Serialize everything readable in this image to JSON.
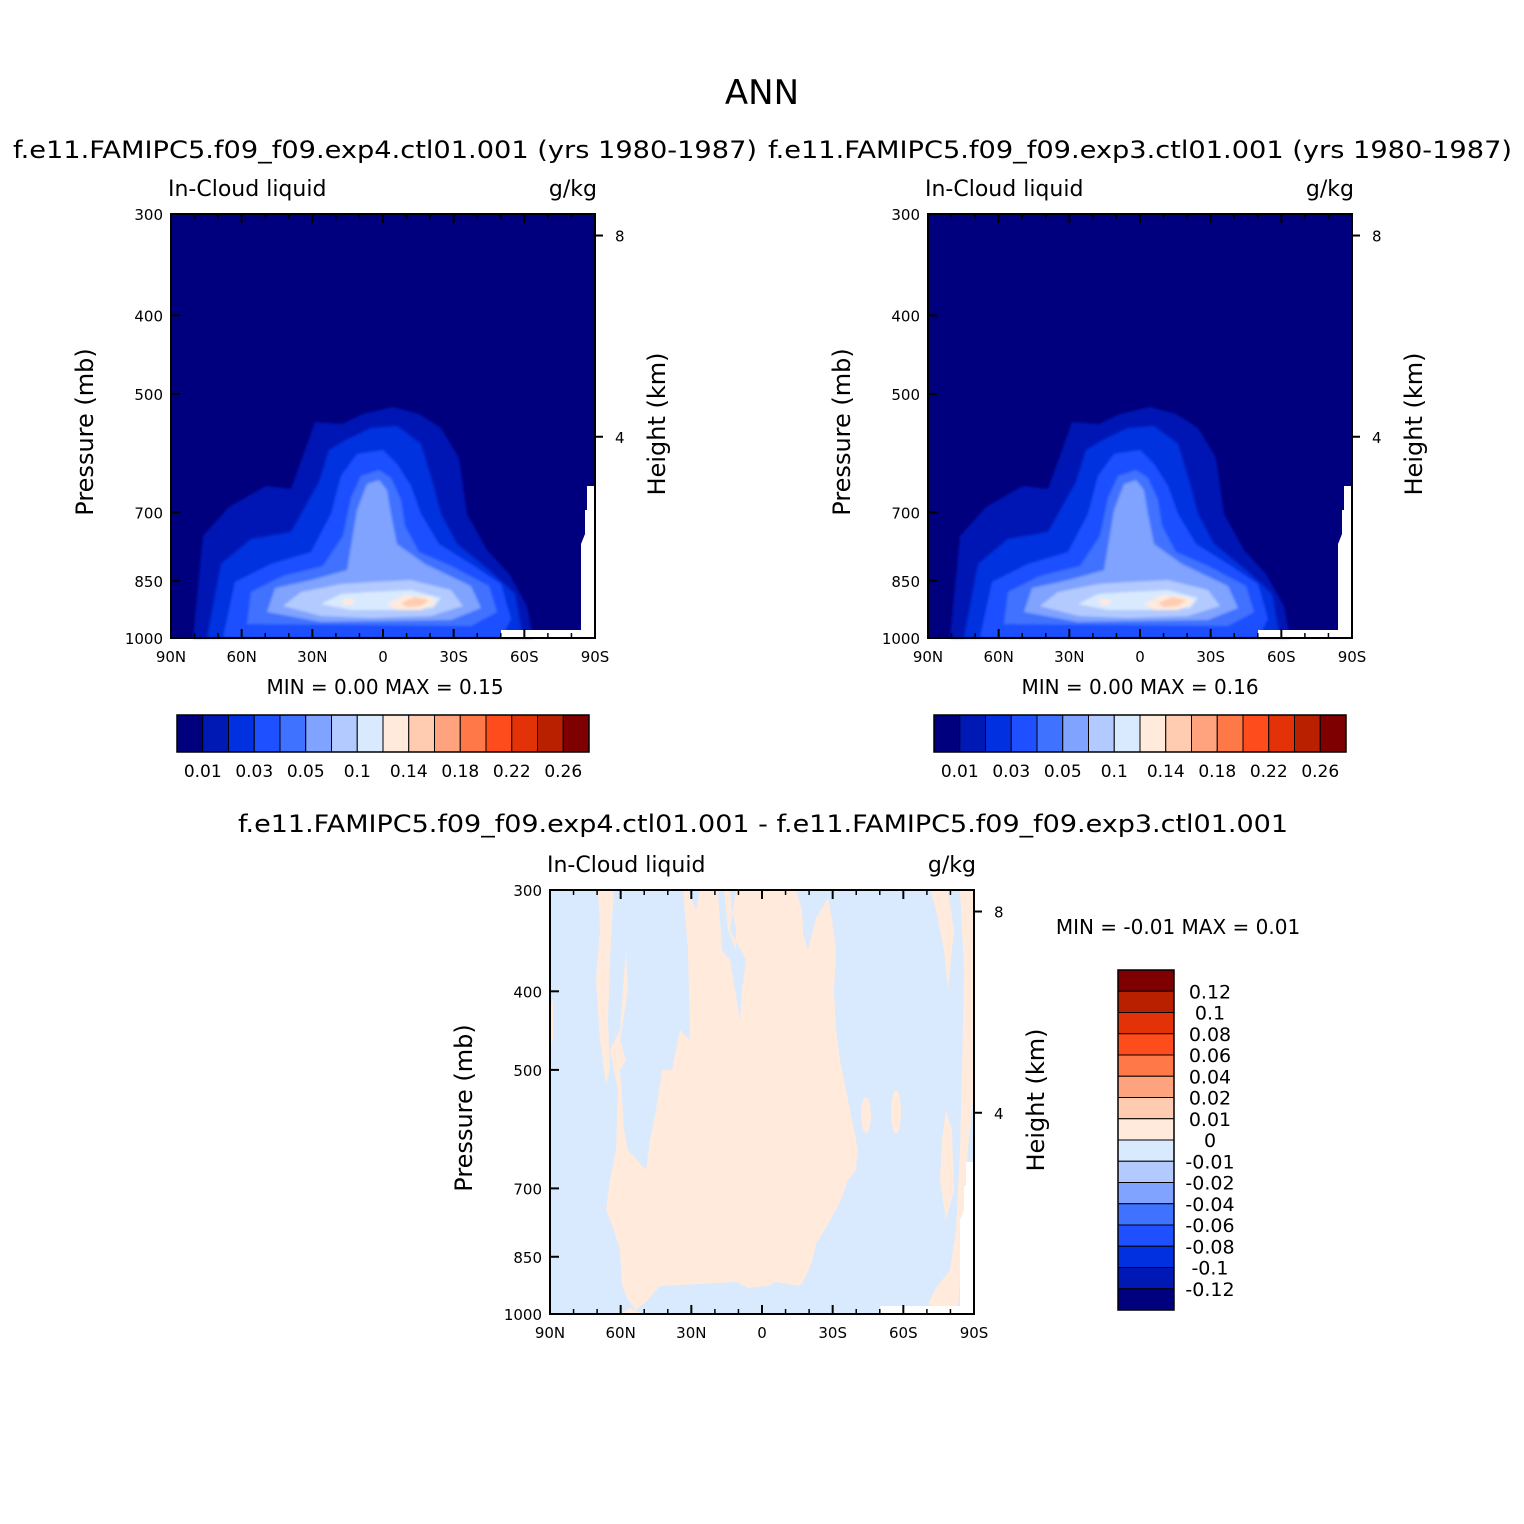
{
  "figure_title": "ANN",
  "chart_data": [
    {
      "type": "heatmap",
      "panel": "left",
      "case_title": "f.e11.FAMIPC5.f09_f09.exp4.ctl01.001 (yrs 1980-1987)",
      "variable": "In-Cloud liquid",
      "units": "g/kg",
      "ylabel": "Pressure (mb)",
      "ylabel_right": "Height (km)",
      "x_ticks": [
        "90N",
        "60N",
        "30N",
        "0",
        "30S",
        "60S",
        "90S"
      ],
      "y_ticks": [
        "300",
        "400",
        "500",
        "700",
        "850",
        "1000"
      ],
      "y2_ticks": [
        "8",
        "4"
      ],
      "ylim": [
        1000,
        300
      ],
      "y_scale": "log",
      "stats": {
        "min_label": "MIN =",
        "min": "0.00",
        "max_label": "MAX =",
        "max": "0.15"
      },
      "colorbar_labels": [
        "0.01",
        "0.03",
        "0.05",
        "0.1",
        "0.14",
        "0.18",
        "0.22",
        "0.26"
      ],
      "max_location": {
        "lat": "10S",
        "pressure": 880
      }
    },
    {
      "type": "heatmap",
      "panel": "right",
      "case_title": "f.e11.FAMIPC5.f09_f09.exp3.ctl01.001 (yrs 1980-1987)",
      "variable": "In-Cloud liquid",
      "units": "g/kg",
      "ylabel": "Pressure (mb)",
      "ylabel_right": "Height (km)",
      "x_ticks": [
        "90N",
        "60N",
        "30N",
        "0",
        "30S",
        "60S",
        "90S"
      ],
      "y_ticks": [
        "300",
        "400",
        "500",
        "700",
        "850",
        "1000"
      ],
      "y2_ticks": [
        "8",
        "4"
      ],
      "ylim": [
        1000,
        300
      ],
      "y_scale": "log",
      "stats": {
        "min_label": "MIN =",
        "min": "0.00",
        "max_label": "MAX =",
        "max": "0.16"
      },
      "colorbar_labels": [
        "0.01",
        "0.03",
        "0.05",
        "0.1",
        "0.14",
        "0.18",
        "0.22",
        "0.26"
      ],
      "max_location": {
        "lat": "10S",
        "pressure": 880
      }
    },
    {
      "type": "heatmap",
      "panel": "difference",
      "case_title": "f.e11.FAMIPC5.f09_f09.exp4.ctl01.001 - f.e11.FAMIPC5.f09_f09.exp3.ctl01.001",
      "variable": "In-Cloud liquid",
      "units": "g/kg",
      "ylabel": "Pressure (mb)",
      "ylabel_right": "Height (km)",
      "x_ticks": [
        "90N",
        "60N",
        "30N",
        "0",
        "30S",
        "60S",
        "90S"
      ],
      "y_ticks": [
        "300",
        "400",
        "500",
        "700",
        "850",
        "1000"
      ],
      "y2_ticks": [
        "8",
        "4"
      ],
      "ylim": [
        1000,
        300
      ],
      "y_scale": "log",
      "stats": {
        "min_label": "MIN =",
        "min": "-0.01",
        "max_label": "MAX =",
        "max": "0.01"
      },
      "colorbar_labels": [
        "0.12",
        "0.1",
        "0.08",
        "0.06",
        "0.04",
        "0.02",
        "0.01",
        "0",
        "-0.01",
        "-0.02",
        "-0.04",
        "-0.06",
        "-0.08",
        "-0.1",
        "-0.12"
      ]
    }
  ],
  "palette": [
    "#00007f",
    "#0018b4",
    "#0030e0",
    "#1e50ff",
    "#3f72ff",
    "#7fa3ff",
    "#b2caff",
    "#d9eaff",
    "#ffeadb",
    "#ffccb2",
    "#ffa27e",
    "#ff7848",
    "#ff4c1c",
    "#e43208",
    "#b82000",
    "#7f0000"
  ],
  "colors": {
    "axis": "#000000",
    "background": "#ffffff",
    "missing": "#ffffff"
  }
}
